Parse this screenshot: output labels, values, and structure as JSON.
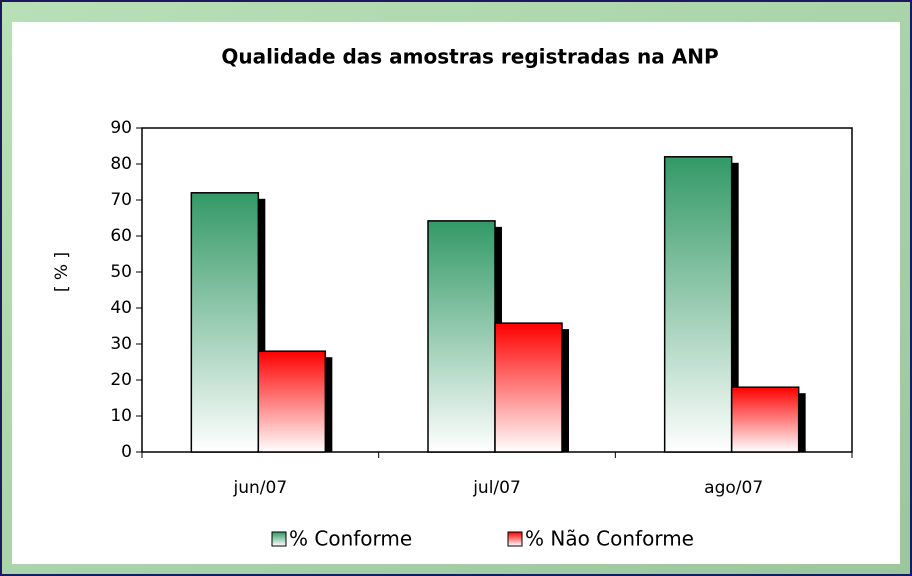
{
  "chart_data": {
    "type": "bar",
    "title": "Qualidade das amostras registradas na ANP",
    "y_label": "[ % ]",
    "categories": [
      "jun/07",
      "jul/07",
      "ago/07"
    ],
    "series": [
      {
        "name": "% Conforme",
        "color": "#339966",
        "values": [
          72,
          64.2,
          82
        ]
      },
      {
        "name": "% Não Conforme",
        "color": "#ff0000",
        "values": [
          28,
          35.8,
          18
        ]
      }
    ],
    "ylim": [
      0,
      90
    ],
    "yticks": [
      0,
      10,
      20,
      30,
      40,
      50,
      60,
      70,
      80,
      90
    ],
    "grid": false,
    "legend": "bottom"
  }
}
